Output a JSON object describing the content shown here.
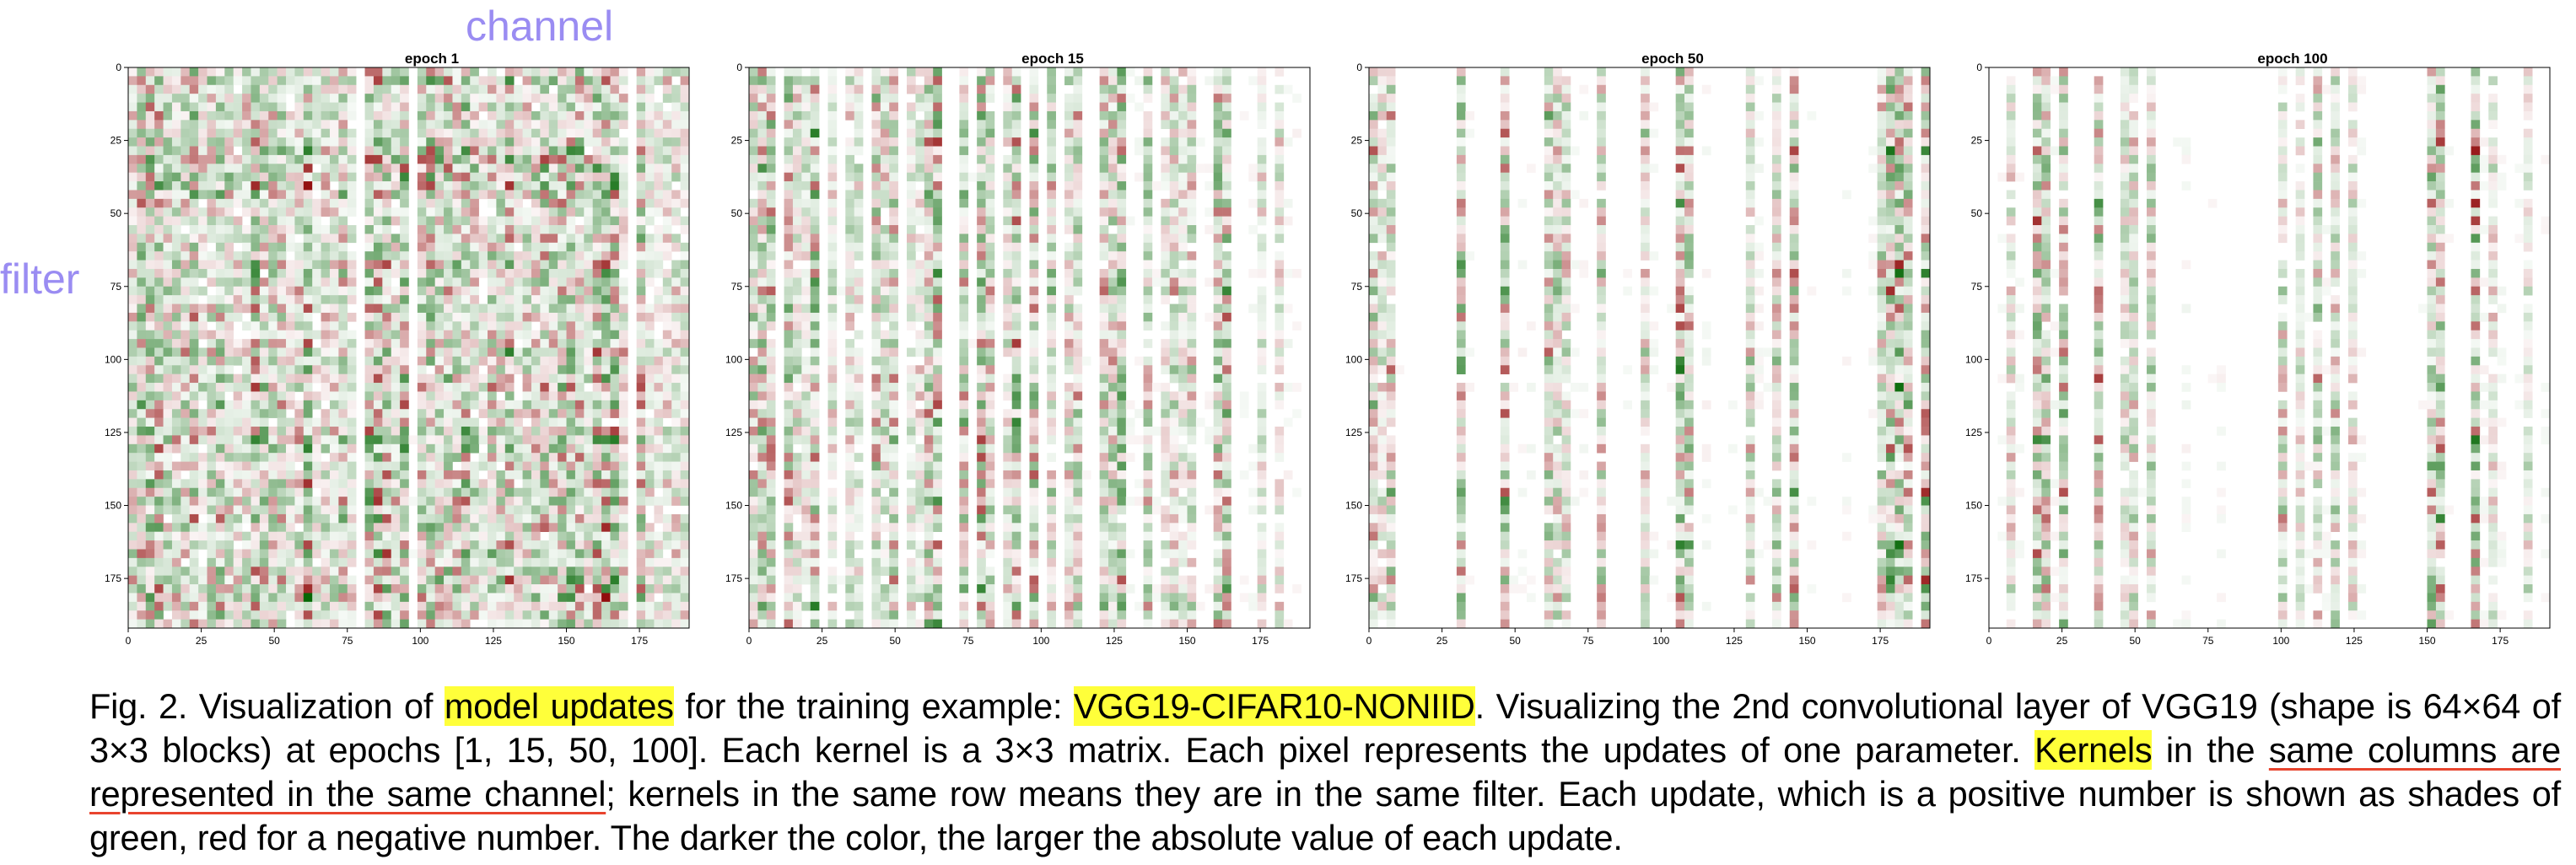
{
  "annotations": {
    "channel": "channel",
    "filter": "filter"
  },
  "chart_data": [
    {
      "type": "heatmap",
      "title": "epoch 1",
      "xticks": [
        "0",
        "25",
        "50",
        "75",
        "100",
        "125",
        "150",
        "175"
      ],
      "yticks": [
        "0",
        "25",
        "50",
        "75",
        "100",
        "125",
        "150",
        "175"
      ],
      "xlim": [
        0,
        192
      ],
      "ylim": [
        192,
        0
      ],
      "colormap": "diverging green (positive) / red (negative)",
      "grid": false,
      "density": 0.95,
      "seed": 11
    },
    {
      "type": "heatmap",
      "title": "epoch 15",
      "xticks": [
        "0",
        "25",
        "50",
        "75",
        "100",
        "125",
        "150",
        "175"
      ],
      "yticks": [
        "0",
        "25",
        "50",
        "75",
        "100",
        "125",
        "150",
        "175"
      ],
      "xlim": [
        0,
        192
      ],
      "ylim": [
        192,
        0
      ],
      "colormap": "diverging green (positive) / red (negative)",
      "grid": false,
      "density": 0.55,
      "seed": 23
    },
    {
      "type": "heatmap",
      "title": "epoch 50",
      "xticks": [
        "0",
        "25",
        "50",
        "75",
        "100",
        "125",
        "150",
        "175"
      ],
      "yticks": [
        "0",
        "25",
        "50",
        "75",
        "100",
        "125",
        "150",
        "175"
      ],
      "xlim": [
        0,
        192
      ],
      "ylim": [
        192,
        0
      ],
      "colormap": "diverging green (positive) / red (negative)",
      "grid": false,
      "density": 0.3,
      "seed": 37
    },
    {
      "type": "heatmap",
      "title": "epoch 100",
      "xticks": [
        "0",
        "25",
        "50",
        "75",
        "100",
        "125",
        "150",
        "175"
      ],
      "yticks": [
        "0",
        "25",
        "50",
        "75",
        "100",
        "125",
        "150",
        "175"
      ],
      "xlim": [
        0,
        192
      ],
      "ylim": [
        192,
        0
      ],
      "colormap": "diverging green (positive) / red (negative)",
      "grid": false,
      "density": 0.25,
      "seed": 53
    }
  ],
  "caption": {
    "t1": "Fig. 2. Visualization of ",
    "h1": "model updates",
    "t2": " for the training example: ",
    "h2": "VGG19-CIFAR10-NONIID",
    "t3": ". Visualizing the 2nd convolutional layer of VGG19 (shape is 64×64 of 3×3 blocks) at epochs [1, 15, 50, 100]. Each kernel is a 3×3 matrix. Each pixel represents the updates of one parameter. ",
    "h3": "Kernels",
    "t4": " in the ",
    "u1": "same columns are represented in the same channel",
    "t5": "; kernels in the same row means they are in the same filter. Each update, which is a positive number is shown as shades of green, red for a negative number. The darker the color, the larger the absolute value of each update."
  }
}
